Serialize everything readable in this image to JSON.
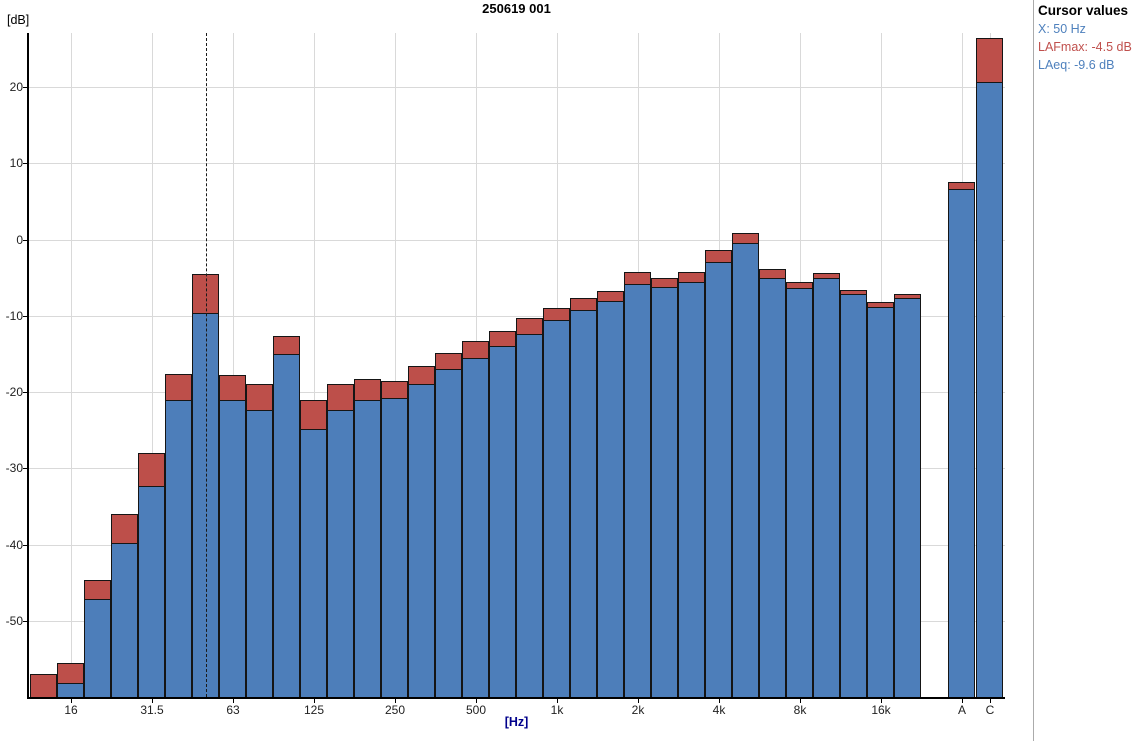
{
  "window": {
    "title": "250619 001"
  },
  "cursor_panel": {
    "heading": "Cursor values",
    "x_line": "X: 50 Hz",
    "max_line": "LAFmax: -4.5 dB",
    "eq_line": "LAeq: -9.6 dB",
    "x_color": "#4f81bd",
    "max_color": "#c0504d",
    "eq_color": "#4f81bd"
  },
  "chart_data": {
    "type": "bar",
    "title": "250619 001",
    "ylabel": "[dB]",
    "xlabel": "[Hz]",
    "ylim": [
      -60,
      27.1
    ],
    "yticks": [
      20,
      10,
      0,
      -10,
      -20,
      -30,
      -40,
      -50
    ],
    "grid": true,
    "legend_position": "none",
    "series": [
      {
        "name": "LAFmax",
        "color": "#bd4f4a"
      },
      {
        "name": "LAeq",
        "color": "#4d7eba"
      }
    ],
    "cursor": {
      "x": "50",
      "LAFmax": -4.5,
      "LAeq": -9.6
    },
    "bands": [
      {
        "f": "12.5",
        "label": "",
        "LAFmax": -57.0,
        "LAeq": -60.0
      },
      {
        "f": "16",
        "label": "16",
        "LAFmax": -55.5,
        "LAeq": -58.2
      },
      {
        "f": "20",
        "label": "",
        "LAFmax": -44.7,
        "LAeq": -47.1
      },
      {
        "f": "25",
        "label": "",
        "LAFmax": -36.0,
        "LAeq": -39.8
      },
      {
        "f": "31.5",
        "label": "31.5",
        "LAFmax": -28.0,
        "LAeq": -32.3
      },
      {
        "f": "40",
        "label": "",
        "LAFmax": -17.6,
        "LAeq": -21.0
      },
      {
        "f": "50",
        "label": "",
        "LAFmax": -4.5,
        "LAeq": -9.6
      },
      {
        "f": "63",
        "label": "63",
        "LAFmax": -17.8,
        "LAeq": -21.1
      },
      {
        "f": "80",
        "label": "",
        "LAFmax": -19.0,
        "LAeq": -22.4
      },
      {
        "f": "100",
        "label": "",
        "LAFmax": -12.7,
        "LAeq": -15.0
      },
      {
        "f": "125",
        "label": "125",
        "LAFmax": -21.0,
        "LAeq": -24.8
      },
      {
        "f": "160",
        "label": "",
        "LAFmax": -19.0,
        "LAeq": -22.4
      },
      {
        "f": "200",
        "label": "",
        "LAFmax": -18.3,
        "LAeq": -21.1
      },
      {
        "f": "250",
        "label": "250",
        "LAFmax": -18.6,
        "LAeq": -20.8
      },
      {
        "f": "315",
        "label": "",
        "LAFmax": -16.6,
        "LAeq": -19.0
      },
      {
        "f": "400",
        "label": "",
        "LAFmax": -14.9,
        "LAeq": -17.0
      },
      {
        "f": "500",
        "label": "500",
        "LAFmax": -13.3,
        "LAeq": -15.5
      },
      {
        "f": "630",
        "label": "",
        "LAFmax": -12.0,
        "LAeq": -14.0
      },
      {
        "f": "800",
        "label": "",
        "LAFmax": -10.3,
        "LAeq": -12.4
      },
      {
        "f": "1k",
        "label": "1k",
        "LAFmax": -9.0,
        "LAeq": -10.5
      },
      {
        "f": "1.25k",
        "label": "",
        "LAFmax": -7.6,
        "LAeq": -9.3
      },
      {
        "f": "1.6k",
        "label": "",
        "LAFmax": -6.8,
        "LAeq": -8.1
      },
      {
        "f": "2k",
        "label": "2k",
        "LAFmax": -4.3,
        "LAeq": -5.8
      },
      {
        "f": "2.5k",
        "label": "",
        "LAFmax": -5.1,
        "LAeq": -6.2
      },
      {
        "f": "3.15k",
        "label": "",
        "LAFmax": -4.2,
        "LAeq": -5.6
      },
      {
        "f": "4k",
        "label": "4k",
        "LAFmax": -1.4,
        "LAeq": -3.0
      },
      {
        "f": "5k",
        "label": "",
        "LAFmax": 0.8,
        "LAeq": -0.4
      },
      {
        "f": "6.3k",
        "label": "",
        "LAFmax": -3.8,
        "LAeq": -5.1
      },
      {
        "f": "8k",
        "label": "8k",
        "LAFmax": -5.6,
        "LAeq": -6.3
      },
      {
        "f": "10k",
        "label": "",
        "LAFmax": -4.4,
        "LAeq": -5.0
      },
      {
        "f": "12.5k",
        "label": "",
        "LAFmax": -6.6,
        "LAeq": -7.2
      },
      {
        "f": "16k",
        "label": "16k",
        "LAFmax": -8.2,
        "LAeq": -8.8
      },
      {
        "f": "20k",
        "label": "",
        "LAFmax": -7.1,
        "LAeq": -7.6
      }
    ],
    "broadband": [
      {
        "f": "A",
        "label": "A",
        "LAFmax": 7.5,
        "LAeq": 6.7
      },
      {
        "f": "C",
        "label": "C",
        "LAFmax": 26.4,
        "LAeq": 20.7
      }
    ]
  }
}
